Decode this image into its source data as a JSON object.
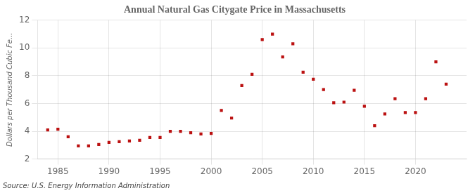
{
  "chart_data": {
    "type": "scatter",
    "title": "Annual Natural Gas Citygate Price in Massachusetts",
    "ylabel": "Dollars per Thousand Cubic Fe...",
    "annotation": "Source: U.S. Energy Information Administration",
    "x": [
      1984,
      1985,
      1986,
      1987,
      1988,
      1989,
      1990,
      1991,
      1992,
      1993,
      1994,
      1995,
      1996,
      1997,
      1998,
      1999,
      2000,
      2001,
      2002,
      2003,
      2004,
      2005,
      2006,
      2007,
      2008,
      2009,
      2010,
      2011,
      2012,
      2013,
      2014,
      2015,
      2016,
      2017,
      2018,
      2019,
      2020,
      2021,
      2022,
      2023
    ],
    "values": [
      4.1,
      4.15,
      3.6,
      2.95,
      2.95,
      3.05,
      3.2,
      3.25,
      3.3,
      3.35,
      3.55,
      3.55,
      4.0,
      4.0,
      3.9,
      3.8,
      3.85,
      5.5,
      4.95,
      7.3,
      8.1,
      10.6,
      11.0,
      9.35,
      10.3,
      8.25,
      7.75,
      7.0,
      6.05,
      6.1,
      6.95,
      5.8,
      4.4,
      5.25,
      6.35,
      5.35,
      5.35,
      6.35,
      9.0,
      7.4
    ],
    "color": "#bb1111",
    "marker": "square",
    "xlim": [
      1983,
      2025
    ],
    "ylim": [
      2,
      12
    ],
    "xticks": [
      1985,
      1990,
      1995,
      2000,
      2005,
      2010,
      2015,
      2020
    ],
    "yticks": [
      2,
      4,
      6,
      8,
      10,
      12
    ],
    "grid": true
  }
}
